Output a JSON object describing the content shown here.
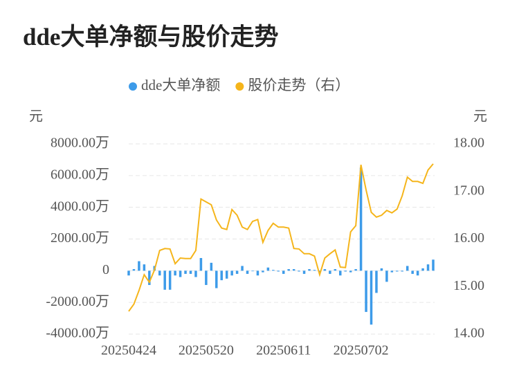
{
  "chart_data": {
    "type": "bar-line",
    "title": "dde大单净额与股价走势",
    "y_label": "元",
    "y2_label": "元",
    "categories": [
      "20250424",
      null,
      null,
      null,
      null,
      null,
      null,
      null,
      null,
      null,
      null,
      null,
      null,
      null,
      null,
      "20250520",
      null,
      null,
      null,
      null,
      null,
      null,
      null,
      null,
      null,
      null,
      null,
      null,
      null,
      null,
      "20250611",
      null,
      null,
      null,
      null,
      null,
      null,
      null,
      null,
      null,
      null,
      null,
      null,
      null,
      null,
      "20250702",
      null,
      null,
      null,
      null,
      null,
      null,
      null,
      null,
      null,
      null,
      null,
      null,
      null,
      null
    ],
    "series": [
      {
        "name": "dde大单净额",
        "type": "bar",
        "color": "#3d9be9",
        "axis": "y",
        "values": [
          -300,
          100,
          600,
          400,
          -900,
          300,
          -300,
          -1200,
          -1200,
          -300,
          -400,
          -200,
          -200,
          -400,
          800,
          -900,
          500,
          -1100,
          -600,
          -500,
          -300,
          -200,
          300,
          -200,
          0,
          -300,
          -100,
          200,
          50,
          -50,
          -200,
          100,
          100,
          -50,
          -200,
          100,
          50,
          -100,
          100,
          -200,
          100,
          -300,
          -50,
          -100,
          100,
          6500,
          -2600,
          -3400,
          -1400,
          150,
          -700,
          -100,
          -50,
          -50,
          300,
          -200,
          -300,
          150,
          400,
          700
        ]
      },
      {
        "name": "股价走势（右）",
        "type": "line",
        "color": "#f5b51b",
        "axis": "y2",
        "values": [
          14.48,
          14.63,
          14.92,
          15.25,
          15.09,
          15.35,
          15.76,
          15.8,
          15.79,
          15.48,
          15.6,
          15.59,
          15.59,
          15.76,
          16.84,
          16.78,
          16.72,
          16.4,
          16.23,
          16.2,
          16.62,
          16.5,
          16.25,
          16.2,
          16.37,
          16.41,
          15.93,
          16.18,
          16.33,
          16.25,
          16.25,
          16.23,
          15.8,
          15.79,
          15.69,
          15.69,
          15.64,
          15.25,
          15.6,
          15.69,
          15.77,
          15.41,
          15.4,
          16.15,
          16.28,
          17.56,
          17.03,
          16.56,
          16.46,
          16.5,
          16.6,
          16.55,
          16.63,
          16.91,
          17.3,
          17.21,
          17.21,
          17.17,
          17.45,
          17.58
        ]
      }
    ],
    "ylim": [
      -4000,
      8000
    ],
    "yticks": [
      {
        "value": -4000,
        "label": "-4000.00万"
      },
      {
        "value": -2000,
        "label": "-2000.00万"
      },
      0,
      {
        "value": 2000,
        "label": "2000.00万"
      },
      {
        "value": 4000,
        "label": "4000.00万"
      },
      {
        "value": 6000,
        "label": "6000.00万"
      },
      {
        "value": 8000,
        "label": "8000.00万"
      }
    ],
    "y2lim": [
      14,
      18
    ],
    "y2ticks": [
      {
        "value": 14,
        "label": "14.00"
      },
      {
        "value": 15,
        "label": "15.00"
      },
      {
        "value": 16,
        "label": "16.00"
      },
      {
        "value": 17,
        "label": "17.00"
      },
      {
        "value": 18,
        "label": "18.00"
      }
    ],
    "grid": true
  }
}
